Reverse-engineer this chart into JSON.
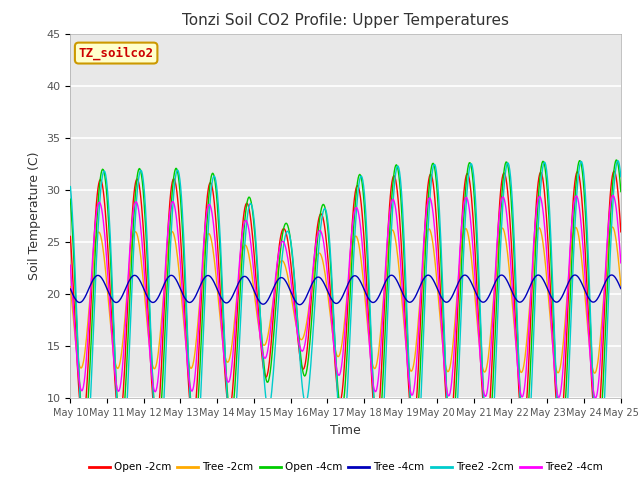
{
  "title": "Tonzi Soil CO2 Profile: Upper Temperatures",
  "xlabel": "Time",
  "ylabel": "Soil Temperature (C)",
  "ylim": [
    10,
    45
  ],
  "xlim": [
    0,
    15
  ],
  "x_tick_labels": [
    "May 10",
    "May 11",
    "May 12",
    "May 13",
    "May 14",
    "May 15",
    "May 16",
    "May 17",
    "May 18",
    "May 19",
    "May 20",
    "May 21",
    "May 22",
    "May 23",
    "May 24",
    "May 25"
  ],
  "yticks": [
    10,
    15,
    20,
    25,
    30,
    35,
    40,
    45
  ],
  "legend_entries": [
    "Open -2cm",
    "Tree -2cm",
    "Open -4cm",
    "Tree -4cm",
    "Tree2 -2cm",
    "Tree2 -4cm"
  ],
  "legend_colors": [
    "#ff0000",
    "#ffaa00",
    "#00cc00",
    "#0000bb",
    "#00cccc",
    "#ff00ff"
  ],
  "watermark_text": "TZ_soilco2",
  "watermark_bg": "#ffffcc",
  "watermark_border": "#cc9900",
  "watermark_color": "#cc0000",
  "bg_color": "#ffffff",
  "plot_bg": "#e8e8e8",
  "grid_color": "#ffffff",
  "n_days": 15,
  "n_points": 720
}
